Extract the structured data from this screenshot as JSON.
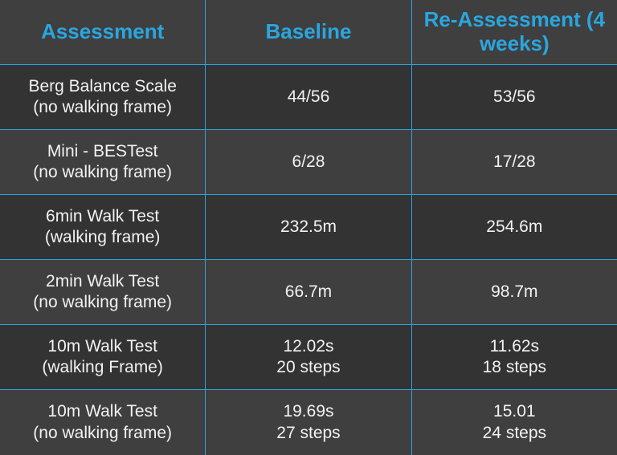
{
  "colors": {
    "header_text": "#2aa6df",
    "body_text": "#f2f2f2",
    "row_bg_a": "#3f3f3f",
    "row_bg_b": "#333333",
    "border": "#2aa6df"
  },
  "columns": [
    "Assessment",
    "Baseline",
    "Re-Assessment (4 weeks)"
  ],
  "rows": [
    {
      "assessment_l1": "Berg Balance Scale",
      "assessment_l2": "(no walking frame)",
      "baseline_l1": "44/56",
      "baseline_l2": "",
      "reassess_l1": "53/56",
      "reassess_l2": ""
    },
    {
      "assessment_l1": "Mini - BESTest",
      "assessment_l2": "(no walking frame)",
      "baseline_l1": "6/28",
      "baseline_l2": "",
      "reassess_l1": "17/28",
      "reassess_l2": ""
    },
    {
      "assessment_l1": "6min Walk Test",
      "assessment_l2": "(walking frame)",
      "baseline_l1": "232.5m",
      "baseline_l2": "",
      "reassess_l1": "254.6m",
      "reassess_l2": ""
    },
    {
      "assessment_l1": "2min Walk Test",
      "assessment_l2": "(no walking frame)",
      "baseline_l1": "66.7m",
      "baseline_l2": "",
      "reassess_l1": "98.7m",
      "reassess_l2": ""
    },
    {
      "assessment_l1": "10m Walk Test",
      "assessment_l2": "(walking Frame)",
      "baseline_l1": "12.02s",
      "baseline_l2": "20 steps",
      "reassess_l1": "11.62s",
      "reassess_l2": "18 steps"
    },
    {
      "assessment_l1": "10m Walk Test",
      "assessment_l2": "(no walking frame)",
      "baseline_l1": "19.69s",
      "baseline_l2": "27 steps",
      "reassess_l1": "15.01",
      "reassess_l2": "24 steps"
    }
  ]
}
